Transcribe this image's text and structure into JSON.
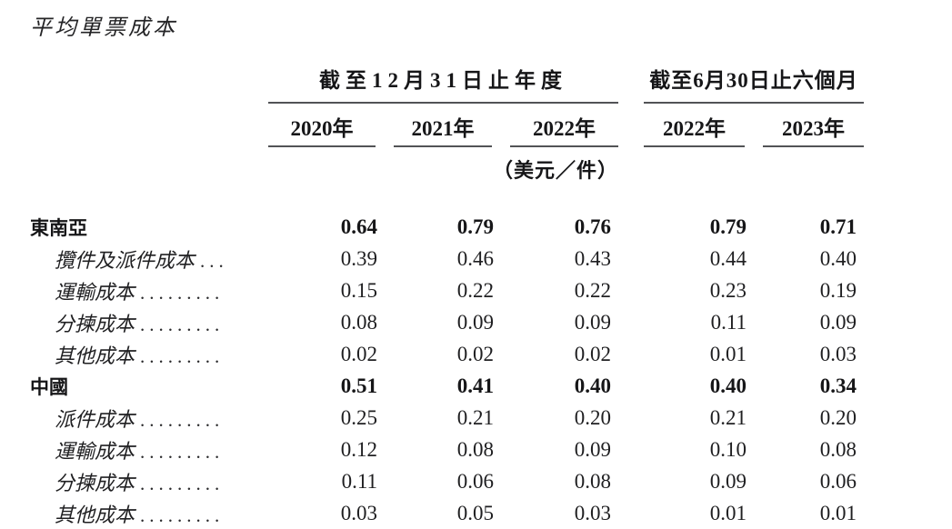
{
  "page": {
    "title": "平均單票成本",
    "unit_note": "（美元／件）"
  },
  "table": {
    "column_groups": [
      {
        "label": "截至12月31日止年度"
      },
      {
        "label": "截至6月30日止六個月"
      }
    ],
    "year_columns": [
      "2020年",
      "2021年",
      "2022年",
      "2022年",
      "2023年"
    ],
    "rows": [
      {
        "label": "東南亞",
        "leader": "",
        "style": "section",
        "values": [
          "0.64",
          "0.79",
          "0.76",
          "0.79",
          "0.71"
        ]
      },
      {
        "label": "攬件及派件成本",
        "leader": "...",
        "style": "sub",
        "values": [
          "0.39",
          "0.46",
          "0.43",
          "0.44",
          "0.40"
        ]
      },
      {
        "label": "運輸成本",
        "leader": ".........",
        "style": "sub",
        "values": [
          "0.15",
          "0.22",
          "0.22",
          "0.23",
          "0.19"
        ]
      },
      {
        "label": "分揀成本",
        "leader": ".........",
        "style": "sub",
        "values": [
          "0.08",
          "0.09",
          "0.09",
          "0.11",
          "0.09"
        ]
      },
      {
        "label": "其他成本",
        "leader": ".........",
        "style": "sub",
        "values": [
          "0.02",
          "0.02",
          "0.02",
          "0.01",
          "0.03"
        ]
      },
      {
        "label": "中國",
        "leader": "",
        "style": "section",
        "values": [
          "0.51",
          "0.41",
          "0.40",
          "0.40",
          "0.34"
        ]
      },
      {
        "label": "派件成本",
        "leader": ".........",
        "style": "sub",
        "values": [
          "0.25",
          "0.21",
          "0.20",
          "0.21",
          "0.20"
        ]
      },
      {
        "label": "運輸成本",
        "leader": ".........",
        "style": "sub",
        "values": [
          "0.12",
          "0.08",
          "0.09",
          "0.10",
          "0.08"
        ]
      },
      {
        "label": "分揀成本",
        "leader": ".........",
        "style": "sub",
        "values": [
          "0.11",
          "0.06",
          "0.08",
          "0.09",
          "0.06"
        ]
      },
      {
        "label": "其他成本",
        "leader": ".........",
        "style": "sub",
        "values": [
          "0.03",
          "0.05",
          "0.03",
          "0.01",
          "0.01"
        ]
      }
    ]
  }
}
